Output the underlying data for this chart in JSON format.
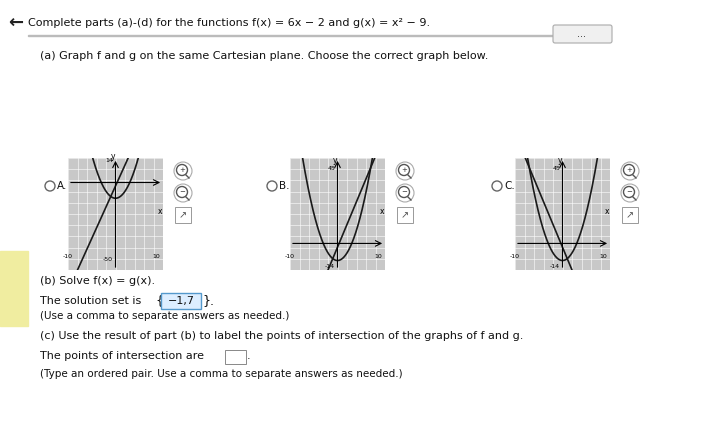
{
  "title": "Complete parts (a)-(d) for the functions f(x) = 6x − 2 and g(x) = x² − 9.",
  "part_a": "(a) Graph f and g on the same Cartesian plane. Choose the correct graph below.",
  "part_b_header": "(b) Solve f(x) = g(x).",
  "part_b_answer": "The solution set is −1,7",
  "part_b_note": "(Use a comma to separate answers as needed.)",
  "part_c_header": "(c) Use the result of part (b) to label the points of intersection of the graphs of f and g.",
  "part_c_text": "The points of intersection are",
  "part_c_note": "(Type an ordered pair. Use a comma to separate answers as needed.)",
  "bg": "#f0eeea",
  "white": "#ffffff",
  "graph_bg": "#c8c8c8",
  "text_color": "#111111",
  "graph_a_ylim": [
    -50,
    14
  ],
  "graph_b_ylim": [
    -14,
    45
  ],
  "graph_c_ylim": [
    -14,
    45
  ],
  "graph_xlim": [
    -10,
    10
  ],
  "yellow_highlight": "#f5f0b0"
}
